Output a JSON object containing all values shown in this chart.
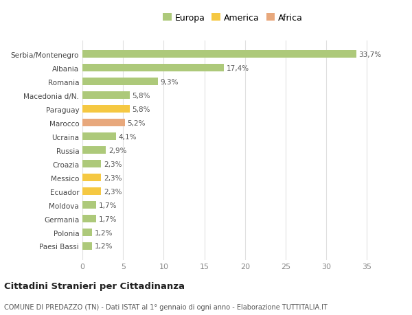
{
  "categories": [
    "Paesi Bassi",
    "Polonia",
    "Germania",
    "Moldova",
    "Ecuador",
    "Messico",
    "Croazia",
    "Russia",
    "Ucraina",
    "Marocco",
    "Paraguay",
    "Macedonia d/N.",
    "Romania",
    "Albania",
    "Serbia/Montenegro"
  ],
  "values": [
    1.2,
    1.2,
    1.7,
    1.7,
    2.3,
    2.3,
    2.3,
    2.9,
    4.1,
    5.2,
    5.8,
    5.8,
    9.3,
    17.4,
    33.7
  ],
  "colors": [
    "#adc97a",
    "#adc97a",
    "#adc97a",
    "#adc97a",
    "#f5c842",
    "#f5c842",
    "#adc97a",
    "#adc97a",
    "#adc97a",
    "#e8a87c",
    "#f5c842",
    "#adc97a",
    "#adc97a",
    "#adc97a",
    "#adc97a"
  ],
  "labels": [
    "1,2%",
    "1,2%",
    "1,7%",
    "1,7%",
    "2,3%",
    "2,3%",
    "2,3%",
    "2,9%",
    "4,1%",
    "5,2%",
    "5,8%",
    "5,8%",
    "9,3%",
    "17,4%",
    "33,7%"
  ],
  "legend": [
    {
      "label": "Europa",
      "color": "#adc97a"
    },
    {
      "label": "America",
      "color": "#f5c842"
    },
    {
      "label": "Africa",
      "color": "#e8a87c"
    }
  ],
  "xlim": [
    0,
    37
  ],
  "xticks": [
    0,
    5,
    10,
    15,
    20,
    25,
    30,
    35
  ],
  "title": "Cittadini Stranieri per Cittadinanza",
  "subtitle": "COMUNE DI PREDAZZO (TN) - Dati ISTAT al 1° gennaio di ogni anno - Elaborazione TUTTITALIA.IT",
  "bg_color": "#ffffff",
  "grid_color": "#e0e0e0"
}
